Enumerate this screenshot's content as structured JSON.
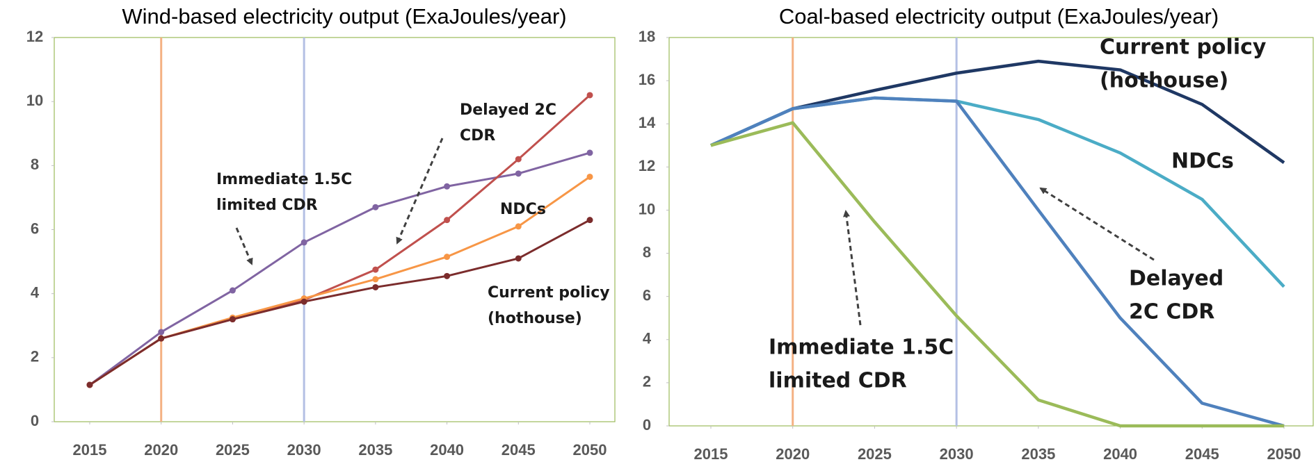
{
  "chart_data": [
    {
      "type": "line",
      "title": "Wind-based electricity output (ExaJoules/year)",
      "x": [
        2015,
        2020,
        2025,
        2030,
        2035,
        2040,
        2045,
        2050
      ],
      "xlim": [
        2015,
        2050
      ],
      "xticks": [
        2015,
        2020,
        2025,
        2030,
        2035,
        2040,
        2045,
        2050
      ],
      "ylim": [
        0,
        12
      ],
      "yticks": [
        0,
        2,
        4,
        6,
        8,
        10,
        12
      ],
      "markers": true,
      "vlines": [
        {
          "value": 2020,
          "color": "#f4b183"
        },
        {
          "value": 2030,
          "color": "#b4c0e4"
        }
      ],
      "series": [
        {
          "name": "Immediate 1.5C limited CDR",
          "color": "#8064a2",
          "values": [
            1.15,
            2.8,
            4.1,
            5.6,
            6.7,
            7.35,
            7.75,
            8.4
          ]
        },
        {
          "name": "Delayed 2C CDR",
          "color": "#c0504d",
          "values": [
            1.15,
            2.6,
            3.2,
            3.8,
            4.75,
            6.3,
            8.2,
            10.2
          ]
        },
        {
          "name": "NDCs",
          "color": "#f79646",
          "values": [
            1.15,
            2.6,
            3.25,
            3.85,
            4.45,
            5.15,
            6.1,
            7.65
          ]
        },
        {
          "name": "Current policy (hothouse)",
          "color": "#7b2c2c",
          "values": [
            1.15,
            2.6,
            3.2,
            3.75,
            4.2,
            4.55,
            5.1,
            6.3
          ]
        }
      ],
      "annotations": [
        {
          "lines": [
            "Immediate 1.5C",
            "limited CDR"
          ]
        },
        {
          "lines": [
            "Delayed 2C",
            "CDR"
          ]
        },
        {
          "lines": [
            "NDCs"
          ]
        },
        {
          "lines": [
            "Current policy",
            "(hothouse)"
          ]
        }
      ]
    },
    {
      "type": "line",
      "title": "Coal-based electricity output (ExaJoules/year)",
      "x": [
        2015,
        2020,
        2025,
        2030,
        2035,
        2040,
        2045,
        2050
      ],
      "xlim": [
        2015,
        2050
      ],
      "xticks": [
        2015,
        2020,
        2025,
        2030,
        2035,
        2040,
        2045,
        2050
      ],
      "ylim": [
        0,
        18
      ],
      "yticks": [
        0,
        2,
        4,
        6,
        8,
        10,
        12,
        14,
        16,
        18
      ],
      "markers": false,
      "vlines": [
        {
          "value": 2020,
          "color": "#f4b183"
        },
        {
          "value": 2030,
          "color": "#b4c0e4"
        }
      ],
      "series": [
        {
          "name": "Current policy (hothouse)",
          "color": "#1f3864",
          "values": [
            13,
            14.7,
            15.55,
            16.35,
            16.9,
            16.5,
            14.9,
            12.2
          ]
        },
        {
          "name": "NDCs",
          "color": "#4bacc6",
          "values": [
            13,
            14.7,
            15.2,
            15.05,
            14.2,
            12.65,
            10.5,
            6.45
          ]
        },
        {
          "name": "Delayed 2C CDR",
          "color": "#4f81bd",
          "values": [
            13,
            14.7,
            15.2,
            15.05,
            10,
            5,
            1.05,
            0
          ]
        },
        {
          "name": "Immediate 1.5C limited CDR",
          "color": "#9bbb59",
          "values": [
            13,
            14.05,
            9.45,
            5.1,
            1.2,
            0,
            0,
            0
          ]
        }
      ],
      "annotations": [
        {
          "lines": [
            "Current policy",
            "(hothouse)"
          ]
        },
        {
          "lines": [
            "NDCs"
          ]
        },
        {
          "lines": [
            "Delayed",
            "2C CDR"
          ]
        },
        {
          "lines": [
            "Immediate 1.5C",
            "limited CDR"
          ]
        }
      ]
    }
  ]
}
